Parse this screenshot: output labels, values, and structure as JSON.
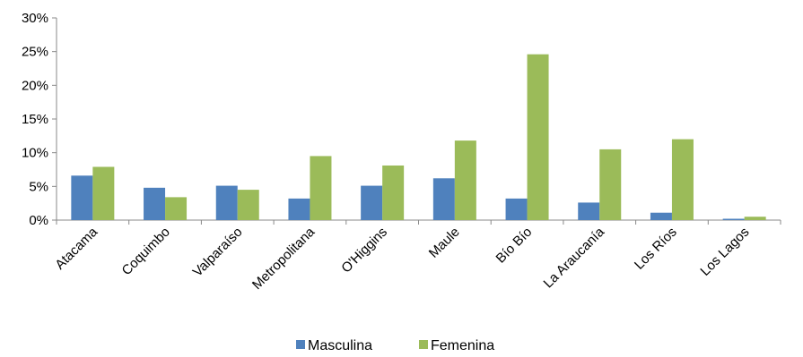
{
  "chart_data": {
    "type": "bar",
    "categories": [
      "Atacama",
      "Coquimbo",
      "Valparaíso",
      "Metropolitana",
      "O'Higgins",
      "Maule",
      "Bío Bío",
      "La Araucanía",
      "Los Ríos",
      "Los Lagos"
    ],
    "series": [
      {
        "name": "Masculina",
        "color": "#4f81bd",
        "values": [
          6.6,
          4.8,
          5.1,
          3.2,
          5.1,
          6.2,
          3.2,
          2.6,
          1.1,
          0.2
        ]
      },
      {
        "name": "Femenina",
        "color": "#9bbb59",
        "values": [
          7.9,
          3.4,
          4.5,
          9.5,
          8.1,
          11.8,
          24.6,
          10.5,
          12.0,
          0.5
        ]
      }
    ],
    "y_ticks": [
      "0%",
      "5%",
      "10%",
      "15%",
      "20%",
      "25%",
      "30%"
    ],
    "ylim": [
      0,
      30
    ],
    "grid": false,
    "legend_position": "bottom",
    "title": "",
    "xlabel": "",
    "ylabel": ""
  }
}
